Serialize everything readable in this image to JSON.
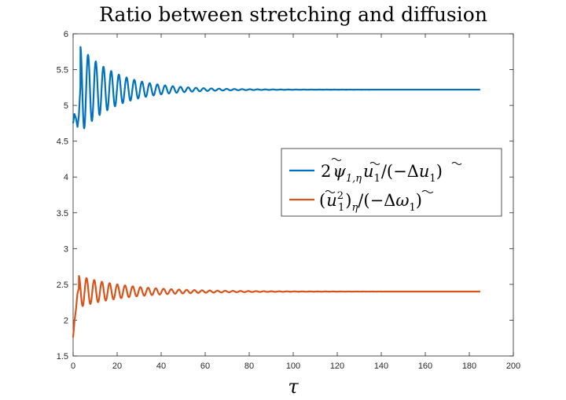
{
  "chart_data": {
    "type": "line",
    "title": "Ratio between stretching and diffusion",
    "xlabel": "τ",
    "ylabel": "",
    "xlim": [
      0,
      200
    ],
    "ylim": [
      1.5,
      6
    ],
    "xticks": [
      "0",
      "20",
      "40",
      "60",
      "80",
      "100",
      "120",
      "140",
      "160",
      "180",
      "200"
    ],
    "yticks": [
      "1.5",
      "2",
      "2.5",
      "3",
      "3.5",
      "4",
      "4.5",
      "5",
      "5.5",
      "6"
    ],
    "grid": false,
    "legend_position": "center-right",
    "series": [
      {
        "name": "2ψ̃_{1,η} ũ_1 / (−Δũ_1)",
        "color": "#0072BD",
        "x_range": [
          0,
          185
        ],
        "start_points": [
          [
            0,
            4.75
          ],
          [
            0.6,
            4.88
          ],
          [
            1.3,
            4.82
          ],
          [
            2.0,
            4.7
          ],
          [
            2.6,
            4.85
          ],
          [
            3.3,
            5.25
          ]
        ],
        "steady_value": 5.22,
        "oscillation": {
          "amplitude": 0.6,
          "decay_rate": 0.06,
          "period": 3.5
        }
      },
      {
        "name": "(ũ_1²)_η / (−Δω̃_1)",
        "color": "#D95319",
        "x_range": [
          0,
          185
        ],
        "start_points": [
          [
            0,
            1.76
          ],
          [
            0.6,
            1.98
          ],
          [
            1.3,
            2.15
          ],
          [
            2.0,
            2.38
          ],
          [
            2.6,
            2.44
          ]
        ],
        "steady_value": 2.4,
        "oscillation": {
          "amplitude": 0.22,
          "decay_rate": 0.045,
          "period": 3.5
        }
      }
    ],
    "legend": {
      "entry1": {
        "c1": "2",
        "c2": "ψ",
        "c3": "1,η",
        "c4": "u",
        "c5": "1",
        "c6": "/(−Δ",
        "c7": "u",
        "c8": "1",
        "c9": ")"
      },
      "entry2": {
        "c1": "(",
        "c2": "u",
        "c3": "2",
        "c4": "1",
        "c5": ")",
        "c6": "η",
        "c7": "/(−Δ",
        "c8": "ω",
        "c9": "1",
        "c10": ")"
      }
    }
  }
}
